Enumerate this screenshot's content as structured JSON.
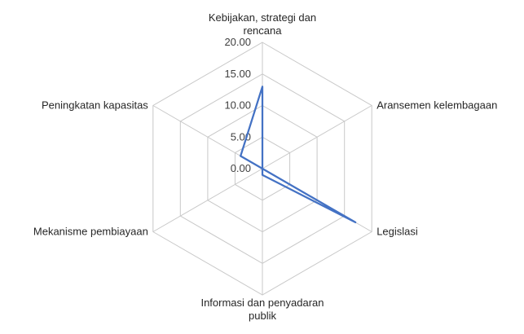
{
  "chart_data": {
    "type": "radar",
    "categories": [
      [
        "Kebijakan, strategi dan",
        "rencana"
      ],
      [
        "Aransemen kelembagaan"
      ],
      [
        "Legislasi"
      ],
      [
        "Informasi dan penyadaran",
        "publik"
      ],
      [
        "Mekanisme pembiayaan"
      ],
      [
        "Peningkatan kapasitas"
      ]
    ],
    "tick_labels": [
      "0.00",
      "5.00",
      "10.00",
      "15.00",
      "20.00"
    ],
    "rmin": 0,
    "rmax": 20,
    "grid": true,
    "legend": "none",
    "series": [
      {
        "values": [
          13,
          0,
          17,
          1,
          0,
          4
        ],
        "color": "#4472c4"
      }
    ]
  }
}
